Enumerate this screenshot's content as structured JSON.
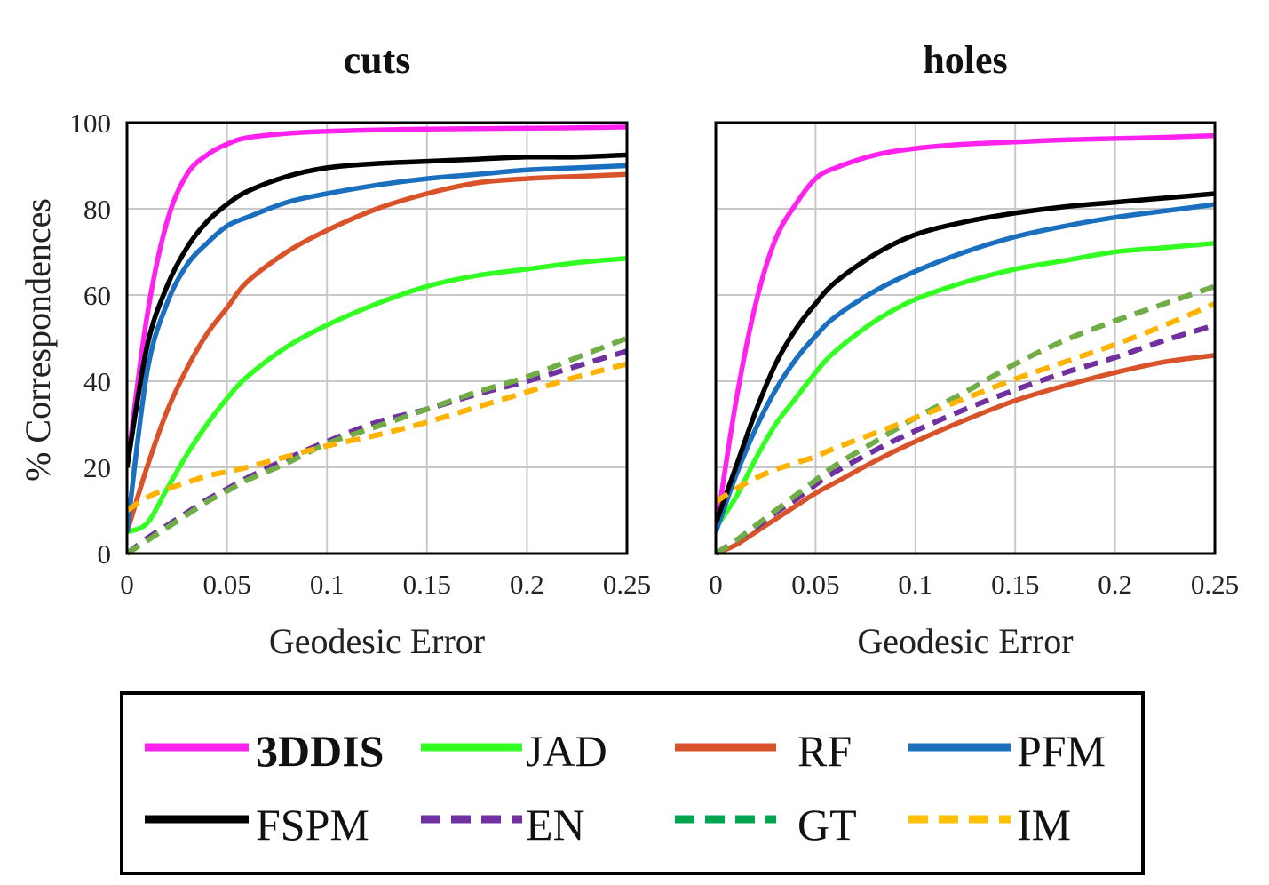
{
  "chart_data": [
    {
      "type": "line",
      "title": "cuts",
      "xlabel": "Geodesic Error",
      "ylabel": "% Correspondences",
      "xlim": [
        0,
        0.25
      ],
      "ylim": [
        0,
        100
      ],
      "xticks": [
        "0",
        "0.05",
        "0.1",
        "0.15",
        "0.2",
        "0.25"
      ],
      "yticks": [
        "0",
        "20",
        "40",
        "60",
        "80",
        "100"
      ],
      "grid": true,
      "x": [
        0,
        0.01,
        0.02,
        0.03,
        0.04,
        0.05,
        0.06,
        0.08,
        0.1,
        0.125,
        0.15,
        0.175,
        0.2,
        0.225,
        0.25
      ],
      "series": [
        {
          "name": "3DDIS",
          "color": "#ff22ee",
          "dash": false,
          "values": [
            20,
            55,
            77,
            88,
            92.5,
            95,
            96.5,
            97.5,
            98,
            98.3,
            98.5,
            98.6,
            98.7,
            98.8,
            99
          ]
        },
        {
          "name": "JAD",
          "color": "#33ff22",
          "dash": false,
          "values": [
            5,
            7,
            15,
            23,
            30,
            36,
            41,
            48,
            53,
            58,
            62,
            64.5,
            66,
            67.5,
            68.5
          ]
        },
        {
          "name": "RF",
          "color": "#d9532a",
          "dash": false,
          "values": [
            5,
            20,
            33,
            43,
            51,
            57,
            63,
            70,
            75,
            80,
            83.5,
            86,
            87,
            87.5,
            88
          ]
        },
        {
          "name": "PFM",
          "color": "#1a6fbf",
          "dash": false,
          "values": [
            5,
            42,
            58,
            67,
            72,
            76,
            78,
            81.5,
            83.5,
            85.5,
            87,
            88,
            89,
            89.5,
            90
          ]
        },
        {
          "name": "FSPM",
          "color": "#000000",
          "dash": false,
          "values": [
            20,
            48,
            62,
            71,
            77,
            81,
            84,
            87.5,
            89.5,
            90.5,
            91,
            91.5,
            92,
            92,
            92.5
          ]
        },
        {
          "name": "EN",
          "color": "#7030a0",
          "dash": true,
          "values": [
            0,
            3.5,
            6.5,
            9.5,
            12.5,
            15,
            17.5,
            22,
            26,
            30.5,
            33.5,
            37,
            40,
            43.5,
            47
          ]
        },
        {
          "name": "GT",
          "color": "#70ad47",
          "dash": true,
          "values": [
            0,
            3,
            6,
            9,
            12,
            14.5,
            17,
            21,
            25.5,
            29.5,
            33.5,
            37.5,
            41,
            45.5,
            50
          ]
        },
        {
          "name": "IM",
          "color": "#ffb300",
          "dash": true,
          "values": [
            10,
            13,
            15,
            16.5,
            18,
            19,
            20,
            22.5,
            25,
            27.5,
            30.5,
            34,
            37.5,
            41,
            44
          ]
        }
      ]
    },
    {
      "type": "line",
      "title": "holes",
      "xlabel": "Geodesic Error",
      "ylabel": "",
      "xlim": [
        0,
        0.25
      ],
      "ylim": [
        0,
        100
      ],
      "xticks": [
        "0",
        "0.05",
        "0.1",
        "0.15",
        "0.2",
        "0.25"
      ],
      "yticks": [],
      "grid": true,
      "x": [
        0,
        0.01,
        0.02,
        0.03,
        0.04,
        0.05,
        0.06,
        0.08,
        0.1,
        0.125,
        0.15,
        0.175,
        0.2,
        0.225,
        0.25
      ],
      "series": [
        {
          "name": "3DDIS",
          "color": "#ff22ee",
          "dash": false,
          "values": [
            5,
            35,
            58,
            73,
            81,
            87,
            89.5,
            92.5,
            94,
            95,
            95.5,
            96,
            96.3,
            96.6,
            97
          ]
        },
        {
          "name": "JAD",
          "color": "#33ff22",
          "dash": false,
          "values": [
            6,
            13,
            22,
            30,
            36,
            42,
            47,
            54,
            59,
            63,
            66,
            68,
            70,
            71,
            72
          ]
        },
        {
          "name": "RF",
          "color": "#d9532a",
          "dash": false,
          "values": [
            0,
            2,
            5,
            8,
            11,
            14,
            16.5,
            21.5,
            26,
            31,
            35.5,
            39,
            42,
            44.5,
            46
          ]
        },
        {
          "name": "PFM",
          "color": "#1a6fbf",
          "dash": false,
          "values": [
            5,
            18,
            29,
            38,
            45,
            50.5,
            55,
            61,
            65.5,
            70,
            73.5,
            76,
            78,
            79.5,
            81
          ]
        },
        {
          "name": "FSPM",
          "color": "#000000",
          "dash": false,
          "values": [
            7,
            20,
            33,
            44,
            52,
            58,
            63,
            69.5,
            74,
            77,
            79,
            80.5,
            81.5,
            82.5,
            83.5
          ]
        },
        {
          "name": "EN",
          "color": "#7030a0",
          "dash": true,
          "values": [
            0,
            3,
            6,
            9.5,
            12.5,
            16,
            19,
            24,
            28.5,
            33.5,
            38,
            42,
            45.5,
            49.5,
            53
          ]
        },
        {
          "name": "GT",
          "color": "#70ad47",
          "dash": true,
          "values": [
            0,
            3,
            6.5,
            10,
            13.5,
            17,
            20.5,
            26,
            31.5,
            37.5,
            44,
            49.5,
            54,
            58,
            62
          ]
        },
        {
          "name": "IM",
          "color": "#ffb300",
          "dash": true,
          "values": [
            12,
            15,
            17.5,
            19.5,
            21,
            22.5,
            24.5,
            28,
            31.5,
            36,
            40.5,
            44.5,
            48.5,
            53,
            58
          ]
        }
      ]
    }
  ],
  "legend": {
    "placement": "bottom",
    "items": [
      {
        "name": "3DDIS",
        "color": "#ff22ee",
        "dash": false,
        "bold": true
      },
      {
        "name": "JAD",
        "color": "#33ff22",
        "dash": false,
        "bold": false
      },
      {
        "name": "RF",
        "color": "#d9532a",
        "dash": false,
        "bold": false
      },
      {
        "name": "PFM",
        "color": "#1a6fbf",
        "dash": false,
        "bold": false
      },
      {
        "name": "FSPM",
        "color": "#000000",
        "dash": false,
        "bold": false
      },
      {
        "name": "EN",
        "color": "#7030a0",
        "dash": true,
        "bold": false
      },
      {
        "name": "GT",
        "color": "#00a550",
        "dash": true,
        "bold": false
      },
      {
        "name": "IM",
        "color": "#ffc000",
        "dash": true,
        "bold": false
      }
    ]
  }
}
